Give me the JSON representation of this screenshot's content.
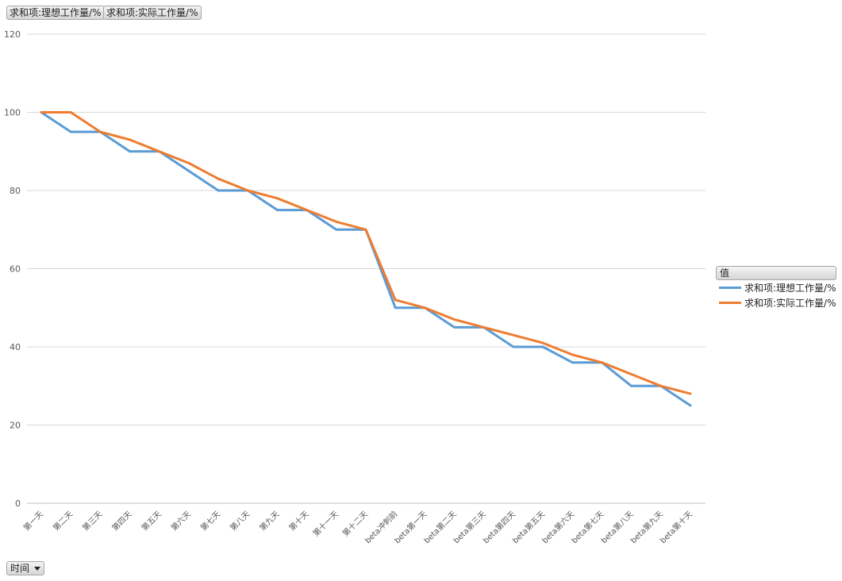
{
  "field_buttons": {
    "ideal": "求和项:理想工作量/%",
    "actual": "求和项:实际工作量/%"
  },
  "legend": {
    "header": "值",
    "items": [
      "求和项:理想工作量/%",
      "求和项:实际工作量/%"
    ]
  },
  "axis_field": {
    "label": "时间"
  },
  "chart_data": {
    "type": "line",
    "categories": [
      "第一天",
      "第二天",
      "第三天",
      "第四天",
      "第五天",
      "第六天",
      "第七天",
      "第八天",
      "第九天",
      "第十天",
      "第十一天",
      "第十二天",
      "beta冲刺前",
      "beta第一天",
      "beta第二天",
      "beta第三天",
      "beta第四天",
      "beta第五天",
      "beta第六天",
      "beta第七天",
      "beta第八天",
      "beta第九天",
      "beta第十天"
    ],
    "series": [
      {
        "name": "求和项:理想工作量/%",
        "color": "#5b9bd5",
        "values": [
          100,
          95,
          95,
          90,
          90,
          85,
          80,
          80,
          75,
          75,
          70,
          70,
          50,
          50,
          45,
          45,
          40,
          40,
          36,
          36,
          30,
          30,
          25
        ]
      },
      {
        "name": "求和项:实际工作量/%",
        "color": "#ed7d31",
        "values": [
          100,
          100,
          95,
          93,
          90,
          87,
          83,
          80,
          78,
          75,
          72,
          70,
          52,
          50,
          47,
          45,
          43,
          41,
          38,
          36,
          33,
          30,
          28
        ]
      }
    ],
    "ylim": [
      0,
      120
    ],
    "yticks": [
      0,
      20,
      40,
      60,
      80,
      100,
      120
    ],
    "grid": true,
    "legend_position": "right"
  }
}
